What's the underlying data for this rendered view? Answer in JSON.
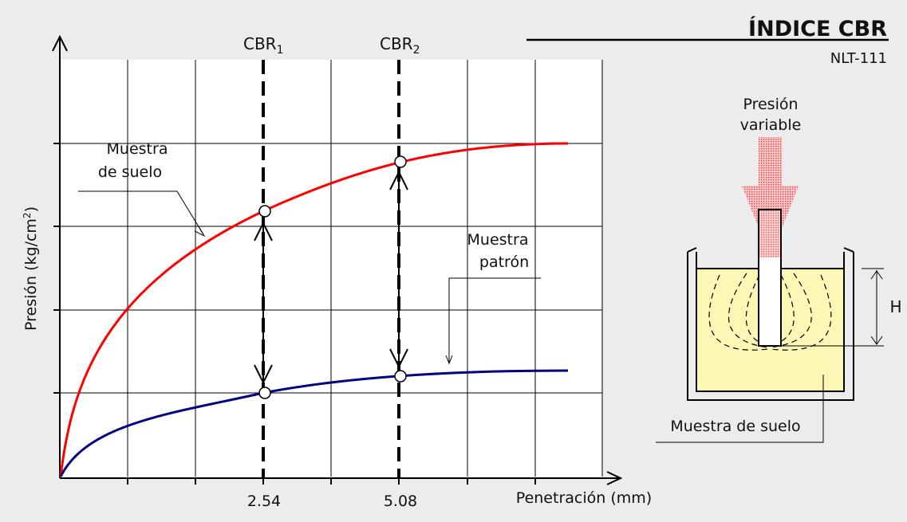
{
  "header": {
    "title": "ÍNDICE CBR",
    "standard": "NLT-111"
  },
  "chart": {
    "ylabel_main": "Presión (kg/cm",
    "ylabel_sup": "2",
    "ylabel_close": ")",
    "xlabel": "Penetración (mm)",
    "ticks": [
      "2.54",
      "5.08"
    ],
    "cbr1_base": "CBR",
    "cbr1_sub": "1",
    "cbr2_base": "CBR",
    "cbr2_sub": "2",
    "label_suelo_1": "Muestra",
    "label_suelo_2": "de suelo",
    "label_patron_1": "Muestra",
    "label_patron_2": "patrón"
  },
  "apparatus": {
    "pressure_1": "Presión",
    "pressure_2": "variable",
    "height_label": "H",
    "sample_label": "Muestra de suelo"
  },
  "colors": {
    "soil_curve": "#ff0000",
    "standard_curve": "#000080",
    "soil_fill": "#fbf8b6",
    "arrow_fill": "#f26a6a"
  },
  "chart_data": {
    "type": "line",
    "xlabel": "Penetración (mm)",
    "ylabel": "Presión (kg/cm2)",
    "x_ticks": [
      2.54,
      5.08
    ],
    "series": [
      {
        "name": "Muestra de suelo"
      },
      {
        "name": "Muestra patrón"
      }
    ],
    "reference_lines": [
      {
        "label": "CBR1",
        "x": 2.54
      },
      {
        "label": "CBR2",
        "x": 5.08
      }
    ]
  }
}
